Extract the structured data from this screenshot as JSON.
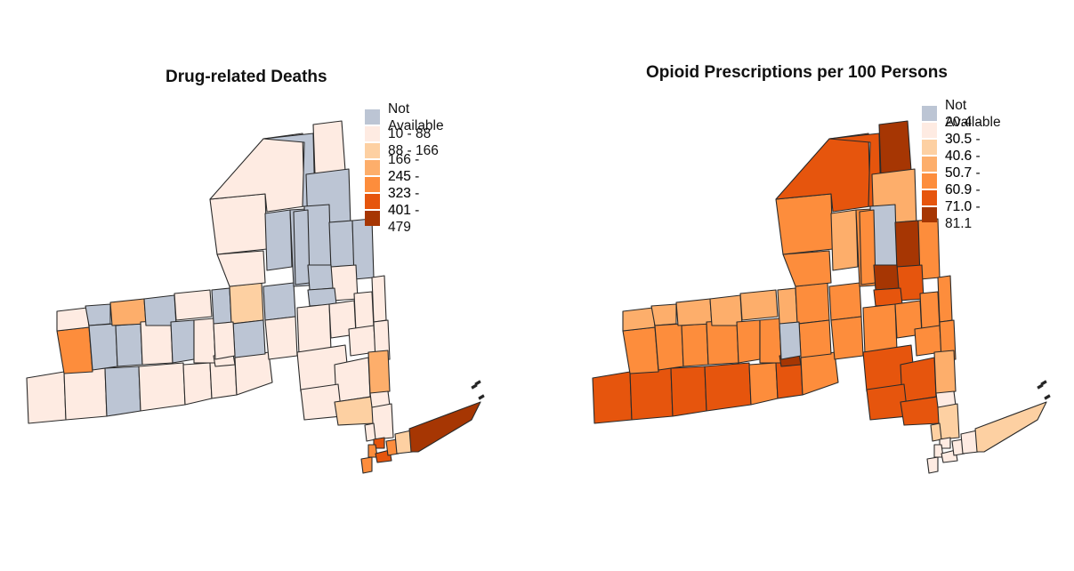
{
  "maps": [
    {
      "title": "Drug-related Deaths",
      "legend": [
        {
          "label": "Not Available",
          "color": "#bcc5d4"
        },
        {
          "label": "10 - 88",
          "color": "#feebe2"
        },
        {
          "label": "88 - 166",
          "color": "#fdd0a2"
        },
        {
          "label": "166 - 245",
          "color": "#fdae6b"
        },
        {
          "label": "245 - 323",
          "color": "#fd8d3c"
        },
        {
          "label": "323 - 401",
          "color": "#e6550d"
        },
        {
          "label": "401 - 479",
          "color": "#a63603"
        }
      ]
    },
    {
      "title": "Opioid Prescriptions per 100 Persons",
      "legend": [
        {
          "label": "Not Available",
          "color": "#bcc5d4"
        },
        {
          "label": "20.4 - 30.5",
          "color": "#feebe2"
        },
        {
          "label": "30.5 - 40.6",
          "color": "#fdd0a2"
        },
        {
          "label": "40.6 - 50.7",
          "color": "#fdae6b"
        },
        {
          "label": "50.7 - 60.9",
          "color": "#fd8d3c"
        },
        {
          "label": "60.9 - 71.0",
          "color": "#e6550d"
        },
        {
          "label": "71.0 - 81.1",
          "color": "#a63603"
        }
      ]
    }
  ]
}
